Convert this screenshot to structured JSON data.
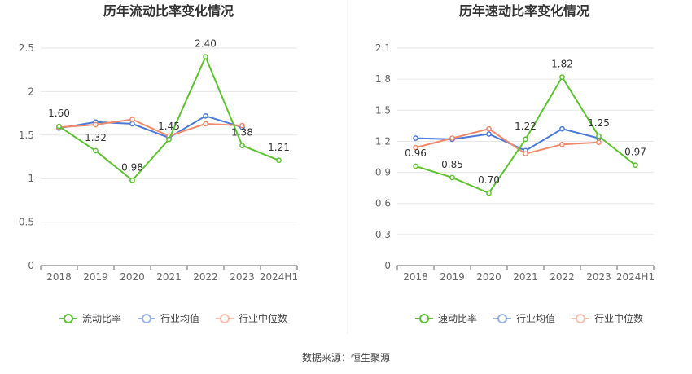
{
  "source": "数据来源：恒生聚源",
  "colors": {
    "main": "#5cc22f",
    "industry_avg": "#4a79d9",
    "industry_median": "#f08a6a",
    "grid": "#e6e6e6",
    "axis": "#666666"
  },
  "chart_data": [
    {
      "type": "line",
      "title": "历年流动比率变化情况",
      "categories": [
        "2018",
        "2019",
        "2020",
        "2021",
        "2022",
        "2023",
        "2024H1"
      ],
      "ylim": [
        0,
        2.5
      ],
      "yticks": [
        0,
        0.5,
        1,
        1.5,
        2,
        2.5
      ],
      "ytick_labels": [
        "0",
        "0.5",
        "1",
        "1.5",
        "2",
        "2.5"
      ],
      "grid": true,
      "legend_position": "bottom",
      "series": [
        {
          "name": "流动比率",
          "color_key": "main",
          "values": [
            1.6,
            1.32,
            0.98,
            1.45,
            2.4,
            1.38,
            1.21
          ],
          "labels": [
            "1.60",
            "1.32",
            "0.98",
            "1.45",
            "2.40",
            "1.38",
            "1.21"
          ]
        },
        {
          "name": "行业均值",
          "color_key": "industry_avg",
          "values": [
            1.58,
            1.65,
            1.63,
            1.47,
            1.72,
            1.59,
            null
          ]
        },
        {
          "name": "行业中位数",
          "color_key": "industry_median",
          "values": [
            1.59,
            1.62,
            1.68,
            1.49,
            1.63,
            1.61,
            null
          ]
        }
      ]
    },
    {
      "type": "line",
      "title": "历年速动比率变化情况",
      "categories": [
        "2018",
        "2019",
        "2020",
        "2021",
        "2022",
        "2023",
        "2024H1"
      ],
      "ylim": [
        0,
        2.1
      ],
      "yticks": [
        0,
        0.3,
        0.6,
        0.9,
        1.2,
        1.5,
        1.8,
        2.1
      ],
      "ytick_labels": [
        "0",
        "0.3",
        "0.6",
        "0.9",
        "1.2",
        "1.5",
        "1.8",
        "2.1"
      ],
      "grid": true,
      "legend_position": "bottom",
      "series": [
        {
          "name": "速动比率",
          "color_key": "main",
          "values": [
            0.96,
            0.85,
            0.7,
            1.22,
            1.82,
            1.25,
            0.97
          ],
          "labels": [
            "0.96",
            "0.85",
            "0.70",
            "1.22",
            "1.82",
            "1.25",
            "0.97"
          ]
        },
        {
          "name": "行业均值",
          "color_key": "industry_avg",
          "values": [
            1.23,
            1.22,
            1.27,
            1.11,
            1.32,
            1.23,
            null
          ]
        },
        {
          "name": "行业中位数",
          "color_key": "industry_median",
          "values": [
            1.14,
            1.23,
            1.32,
            1.08,
            1.17,
            1.19,
            null
          ]
        }
      ]
    }
  ]
}
